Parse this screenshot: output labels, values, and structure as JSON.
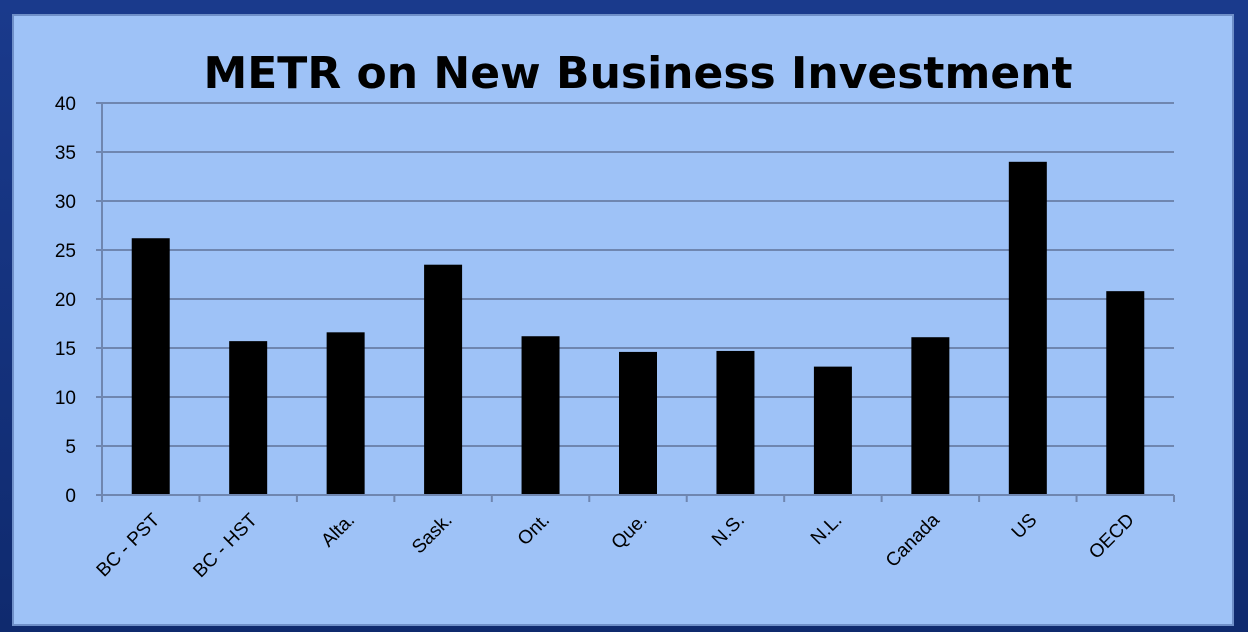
{
  "colors": {
    "background": "#9ec2f7",
    "frame": "#12307a",
    "bar": "#000000",
    "grid": "#6f86b0"
  },
  "chart_data": {
    "type": "bar",
    "title": "METR on New Business Investment",
    "xlabel": "",
    "ylabel": "",
    "ylim": [
      0,
      40
    ],
    "yticks": [
      "0",
      "5",
      "10",
      "15",
      "20",
      "25",
      "30",
      "35",
      "40"
    ],
    "grid": true,
    "legend": "none",
    "categories": [
      "BC - PST",
      "BC - HST",
      "Alta.",
      "Sask.",
      "Ont.",
      "Que.",
      "N.S.",
      "N.L.",
      "Canada",
      "US",
      "OECD"
    ],
    "values": [
      26.2,
      15.7,
      16.6,
      23.5,
      16.2,
      14.6,
      14.7,
      13.1,
      16.1,
      34.0,
      20.8
    ]
  }
}
